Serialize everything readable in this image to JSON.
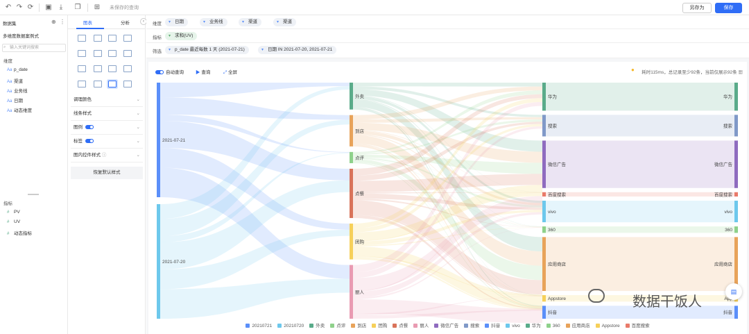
{
  "topbar": {
    "unsaved_label": "未保存的查询",
    "saveas_label": "另存为",
    "save_label": "保存",
    "icons": [
      "undo-icon",
      "redo-icon",
      "refresh-icon",
      "save-file-icon",
      "download-icon",
      "copy-icon",
      "grid-icon"
    ]
  },
  "left": {
    "title": "数据集",
    "dataset_name": "多维度数据案例式",
    "search_placeholder": "输入关键词搜索",
    "dimension_title": "维度",
    "dimensions": [
      "p_date",
      "渠道",
      "业务线",
      "日期",
      "动态维度"
    ],
    "metric_title": "指标",
    "metrics": [
      "PV",
      "UV",
      "动态指标"
    ]
  },
  "mid": {
    "tab_chart": "图表",
    "tab_analysis": "分析",
    "panels": [
      {
        "label": "调理颜色",
        "toggle": false
      },
      {
        "label": "线条样式",
        "toggle": false
      },
      {
        "label": "图例",
        "toggle": true
      },
      {
        "label": "标签",
        "toggle": true
      },
      {
        "label": "图内控件样式",
        "toggle": false
      }
    ],
    "restore_label": "恢复默认样式"
  },
  "filters": {
    "dimension_label": "维度",
    "dimension_chips": [
      "日期",
      "业务线",
      "渠道",
      "渠道"
    ],
    "metric_label": "指标",
    "metric_chips": [
      "求和(UV)"
    ],
    "filter_label": "筛选",
    "filter_chips": [
      "p_date 最近每数 1 天 (2021-07-21)",
      "日期 IN 2021-07-20, 2021-07-21"
    ]
  },
  "controls": {
    "auto_query": "自动查询",
    "query": "查询",
    "fullscreen": "全屏",
    "stats": "耗时115ms，总记录至少92条，当前仅展示92条"
  },
  "chart_data": {
    "type": "sankey",
    "columns": [
      [
        {
          "name": "2021-07-21",
          "value": 50,
          "color": "#5b8ff9"
        },
        {
          "name": "2021-07-20",
          "value": 50,
          "color": "#6dc8ec"
        }
      ],
      [
        {
          "name": "外卖",
          "value": 12,
          "color": "#5aab8a"
        },
        {
          "name": "到店",
          "value": 14,
          "color": "#e8a35a"
        },
        {
          "name": "点评",
          "value": 5,
          "color": "#8fd18b"
        },
        {
          "name": "点餐",
          "value": 22,
          "color": "#d9735a"
        },
        {
          "name": "团购",
          "value": 16,
          "color": "#f6d05a"
        },
        {
          "name": "丽人",
          "value": 24,
          "color": "#e99bb2"
        }
      ],
      [
        {
          "name": "华为",
          "value": 13,
          "color": "#5aab8a"
        },
        {
          "name": "搜索",
          "value": 10,
          "color": "#8099c8"
        },
        {
          "name": "微信广告",
          "value": 22,
          "color": "#8f6bbf"
        },
        {
          "name": "百度搜索",
          "value": 2,
          "color": "#e97a6a"
        },
        {
          "name": "vivo",
          "value": 10,
          "color": "#6dc8ec"
        },
        {
          "name": "360",
          "value": 3,
          "color": "#8fd18b"
        },
        {
          "name": "应用商店",
          "value": 25,
          "color": "#e8a35a"
        },
        {
          "name": "Appstore",
          "value": 3,
          "color": "#f6d05a"
        },
        {
          "name": "抖音",
          "value": 6,
          "color": "#5b8ff9"
        }
      ]
    ],
    "right_labels": [
      "华为",
      "搜索",
      "微信广告",
      "百度搜索",
      "vivo",
      "360",
      "应用商店",
      "App",
      "抖音"
    ],
    "legend": [
      {
        "name": "20210721",
        "color": "#5b8ff9"
      },
      {
        "name": "20210720",
        "color": "#6dc8ec"
      },
      {
        "name": "外卖",
        "color": "#5aab8a"
      },
      {
        "name": "点评",
        "color": "#8fd18b"
      },
      {
        "name": "到店",
        "color": "#e8a35a"
      },
      {
        "name": "团购",
        "color": "#f6d05a"
      },
      {
        "name": "点餐",
        "color": "#d9735a"
      },
      {
        "name": "丽人",
        "color": "#e99bb2"
      },
      {
        "name": "微信广告",
        "color": "#8f6bbf"
      },
      {
        "name": "搜索",
        "color": "#8099c8"
      },
      {
        "name": "抖音",
        "color": "#5b8ff9"
      },
      {
        "name": "vivo",
        "color": "#6dc8ec"
      },
      {
        "name": "华为",
        "color": "#5aab8a"
      },
      {
        "name": "360",
        "color": "#8fd18b"
      },
      {
        "name": "应用商店",
        "color": "#e8a35a"
      },
      {
        "name": "Appstore",
        "color": "#f6d05a"
      },
      {
        "name": "百度搜索",
        "color": "#e97a6a"
      }
    ]
  },
  "watermark": "数据干饭人"
}
